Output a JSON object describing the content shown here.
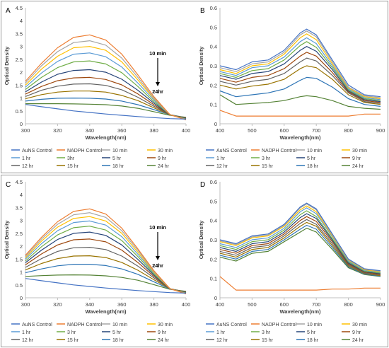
{
  "chart_data": [
    {
      "type": "line",
      "panel_label": "A",
      "xlabel": "Wavelength(nm)",
      "ylabel": "Optical Density",
      "xlim": [
        300,
        400
      ],
      "ylim": [
        0,
        4.5
      ],
      "xticks": [
        300,
        320,
        340,
        360,
        380,
        400
      ],
      "yticks": [
        0,
        0.5,
        1,
        1.5,
        2,
        2.5,
        3,
        3.5,
        4,
        4.5
      ],
      "annotation": {
        "top": "10 min",
        "bottom": "24hr"
      },
      "legend_position": "bottom",
      "x": [
        300,
        310,
        320,
        330,
        340,
        350,
        360,
        370,
        380,
        390,
        400
      ],
      "series": [
        {
          "name": "AuNS Control",
          "color": "#4472c4",
          "values": [
            0.75,
            0.66,
            0.58,
            0.5,
            0.44,
            0.38,
            0.33,
            0.28,
            0.24,
            0.2,
            0.18
          ]
        },
        {
          "name": "NADPH Control",
          "color": "#ed7d31",
          "values": [
            1.65,
            2.35,
            2.95,
            3.35,
            3.45,
            3.25,
            2.7,
            1.9,
            1.05,
            0.35,
            0.15
          ]
        },
        {
          "name": "10 min",
          "color": "#a5a5a5",
          "values": [
            1.58,
            2.25,
            2.8,
            3.15,
            3.22,
            3.05,
            2.55,
            1.8,
            1.0,
            0.35,
            0.16
          ]
        },
        {
          "name": "30 min",
          "color": "#ffc000",
          "values": [
            1.5,
            2.12,
            2.62,
            2.95,
            3.0,
            2.85,
            2.4,
            1.7,
            0.97,
            0.35,
            0.17
          ]
        },
        {
          "name": "1 hr",
          "color": "#5b9bd5",
          "values": [
            1.42,
            1.97,
            2.42,
            2.7,
            2.75,
            2.6,
            2.2,
            1.58,
            0.92,
            0.35,
            0.18
          ]
        },
        {
          "name": "3hr",
          "color": "#70ad47",
          "values": [
            1.33,
            1.8,
            2.18,
            2.4,
            2.44,
            2.32,
            1.98,
            1.45,
            0.86,
            0.35,
            0.19
          ]
        },
        {
          "name": "5 hr",
          "color": "#264478",
          "values": [
            1.24,
            1.62,
            1.92,
            2.07,
            2.1,
            2.0,
            1.73,
            1.3,
            0.8,
            0.35,
            0.2
          ]
        },
        {
          "name": "9 hr",
          "color": "#9e480e",
          "values": [
            1.15,
            1.45,
            1.67,
            1.78,
            1.8,
            1.72,
            1.51,
            1.16,
            0.74,
            0.35,
            0.21
          ]
        },
        {
          "name": "12 hr",
          "color": "#636363",
          "values": [
            1.06,
            1.3,
            1.46,
            1.54,
            1.55,
            1.49,
            1.32,
            1.03,
            0.68,
            0.35,
            0.22
          ]
        },
        {
          "name": "15 hr",
          "color": "#997300",
          "values": [
            0.97,
            1.13,
            1.23,
            1.27,
            1.27,
            1.23,
            1.1,
            0.9,
            0.62,
            0.35,
            0.23
          ]
        },
        {
          "name": "18 hr",
          "color": "#2e75b6",
          "values": [
            0.88,
            0.95,
            0.99,
            1.0,
            0.99,
            0.96,
            0.88,
            0.74,
            0.55,
            0.35,
            0.24
          ]
        },
        {
          "name": "24 hr",
          "color": "#548235",
          "values": [
            0.78,
            0.78,
            0.78,
            0.77,
            0.76,
            0.74,
            0.69,
            0.6,
            0.47,
            0.33,
            0.25
          ]
        }
      ]
    },
    {
      "type": "line",
      "panel_label": "B",
      "xlabel": "Wavelength(nm)",
      "ylabel": "Optical Density",
      "xlim": [
        400,
        900
      ],
      "ylim": [
        0,
        0.6
      ],
      "xticks": [
        400,
        500,
        600,
        700,
        800,
        900
      ],
      "yticks": [
        0,
        0.1,
        0.2,
        0.3,
        0.4,
        0.5,
        0.6
      ],
      "legend_position": "bottom",
      "x": [
        400,
        450,
        500,
        550,
        600,
        650,
        670,
        700,
        750,
        800,
        850,
        900
      ],
      "series": [
        {
          "name": "AuNS Control",
          "color": "#4472c4",
          "values": [
            0.3,
            0.28,
            0.32,
            0.33,
            0.38,
            0.47,
            0.49,
            0.46,
            0.33,
            0.2,
            0.15,
            0.14
          ]
        },
        {
          "name": "NADPH Control",
          "color": "#ed7d31",
          "values": [
            0.07,
            0.04,
            0.04,
            0.04,
            0.04,
            0.04,
            0.04,
            0.04,
            0.04,
            0.04,
            0.05,
            0.05
          ]
        },
        {
          "name": "10 min",
          "color": "#a5a5a5",
          "values": [
            0.29,
            0.27,
            0.31,
            0.32,
            0.37,
            0.46,
            0.48,
            0.45,
            0.32,
            0.19,
            0.145,
            0.135
          ]
        },
        {
          "name": "30 min",
          "color": "#ffc000",
          "values": [
            0.28,
            0.26,
            0.3,
            0.31,
            0.36,
            0.445,
            0.465,
            0.435,
            0.31,
            0.185,
            0.14,
            0.13
          ]
        },
        {
          "name": "1 hr",
          "color": "#5b9bd5",
          "values": [
            0.27,
            0.25,
            0.29,
            0.3,
            0.345,
            0.425,
            0.445,
            0.415,
            0.3,
            0.18,
            0.135,
            0.125
          ]
        },
        {
          "name": "3 hr",
          "color": "#70ad47",
          "values": [
            0.26,
            0.24,
            0.275,
            0.285,
            0.33,
            0.405,
            0.425,
            0.395,
            0.29,
            0.175,
            0.13,
            0.12
          ]
        },
        {
          "name": "5 hr",
          "color": "#264478",
          "values": [
            0.25,
            0.23,
            0.26,
            0.27,
            0.31,
            0.38,
            0.4,
            0.375,
            0.28,
            0.17,
            0.125,
            0.115
          ]
        },
        {
          "name": "9 hr",
          "color": "#9e480e",
          "values": [
            0.235,
            0.215,
            0.24,
            0.25,
            0.285,
            0.35,
            0.37,
            0.35,
            0.265,
            0.165,
            0.12,
            0.11
          ]
        },
        {
          "name": "12 hr",
          "color": "#636363",
          "values": [
            0.22,
            0.2,
            0.22,
            0.23,
            0.26,
            0.32,
            0.34,
            0.325,
            0.25,
            0.16,
            0.115,
            0.105
          ]
        },
        {
          "name": "15 hr",
          "color": "#997300",
          "values": [
            0.2,
            0.18,
            0.195,
            0.205,
            0.23,
            0.285,
            0.3,
            0.29,
            0.23,
            0.15,
            0.11,
            0.1
          ]
        },
        {
          "name": "18 hr",
          "color": "#2e75b6",
          "values": [
            0.17,
            0.14,
            0.15,
            0.16,
            0.18,
            0.225,
            0.24,
            0.235,
            0.19,
            0.13,
            0.1,
            0.09
          ]
        },
        {
          "name": "24 hr",
          "color": "#548235",
          "values": [
            0.15,
            0.1,
            0.105,
            0.11,
            0.12,
            0.14,
            0.145,
            0.14,
            0.12,
            0.09,
            0.08,
            0.075
          ]
        }
      ]
    },
    {
      "type": "line",
      "panel_label": "C",
      "xlabel": "Wavelength(nm)",
      "ylabel": "Optical Density",
      "xlim": [
        300,
        400
      ],
      "ylim": [
        0,
        4.5
      ],
      "xticks": [
        300,
        320,
        340,
        360,
        380,
        400
      ],
      "yticks": [
        0,
        0.5,
        1,
        1.5,
        2,
        2.5,
        3,
        3.5,
        4,
        4.5
      ],
      "annotation": {
        "top": "10 min",
        "bottom": "24hr"
      },
      "legend_position": "bottom",
      "x": [
        300,
        310,
        320,
        330,
        340,
        350,
        360,
        370,
        380,
        390,
        400
      ],
      "series": [
        {
          "name": "AuNS Control",
          "color": "#4472c4",
          "values": [
            0.75,
            0.66,
            0.58,
            0.5,
            0.44,
            0.38,
            0.33,
            0.28,
            0.24,
            0.2,
            0.18
          ]
        },
        {
          "name": "NADPH Control",
          "color": "#ed7d31",
          "values": [
            1.65,
            2.35,
            2.95,
            3.35,
            3.45,
            3.25,
            2.7,
            1.9,
            1.05,
            0.35,
            0.15
          ]
        },
        {
          "name": "10 min",
          "color": "#a5a5a5",
          "values": [
            1.6,
            2.28,
            2.85,
            3.22,
            3.3,
            3.12,
            2.6,
            1.84,
            1.02,
            0.35,
            0.16
          ]
        },
        {
          "name": "30 min",
          "color": "#ffc000",
          "values": [
            1.55,
            2.2,
            2.74,
            3.08,
            3.15,
            2.98,
            2.5,
            1.77,
            0.99,
            0.35,
            0.17
          ]
        },
        {
          "name": "1 hr",
          "color": "#5b9bd5",
          "values": [
            1.5,
            2.1,
            2.6,
            2.92,
            2.98,
            2.82,
            2.37,
            1.69,
            0.96,
            0.35,
            0.18
          ]
        },
        {
          "name": "3 hr",
          "color": "#70ad47",
          "values": [
            1.43,
            1.98,
            2.44,
            2.72,
            2.78,
            2.63,
            2.22,
            1.6,
            0.92,
            0.35,
            0.19
          ]
        },
        {
          "name": "5 hr",
          "color": "#264478",
          "values": [
            1.36,
            1.85,
            2.26,
            2.5,
            2.55,
            2.42,
            2.05,
            1.49,
            0.88,
            0.35,
            0.2
          ]
        },
        {
          "name": "9 hr",
          "color": "#9e480e",
          "values": [
            1.28,
            1.7,
            2.05,
            2.25,
            2.28,
            2.17,
            1.85,
            1.37,
            0.83,
            0.35,
            0.21
          ]
        },
        {
          "name": "12 hr",
          "color": "#636363",
          "values": [
            1.18,
            1.52,
            1.8,
            1.94,
            1.96,
            1.87,
            1.62,
            1.23,
            0.77,
            0.35,
            0.22
          ]
        },
        {
          "name": "15 hr",
          "color": "#997300",
          "values": [
            1.08,
            1.33,
            1.52,
            1.62,
            1.63,
            1.56,
            1.37,
            1.07,
            0.7,
            0.35,
            0.23
          ]
        },
        {
          "name": "18 hr",
          "color": "#2e75b6",
          "values": [
            0.97,
            1.12,
            1.24,
            1.3,
            1.3,
            1.25,
            1.12,
            0.91,
            0.62,
            0.34,
            0.24
          ]
        },
        {
          "name": "24 hr",
          "color": "#548235",
          "values": [
            0.83,
            0.86,
            0.88,
            0.89,
            0.88,
            0.85,
            0.79,
            0.68,
            0.51,
            0.33,
            0.25
          ]
        }
      ]
    },
    {
      "type": "line",
      "panel_label": "D",
      "xlabel": "Wavelength(nm)",
      "ylabel": "Optical Density",
      "xlim": [
        400,
        900
      ],
      "ylim": [
        0,
        0.6
      ],
      "xticks": [
        400,
        500,
        600,
        700,
        800,
        900
      ],
      "yticks": [
        0,
        0.1,
        0.2,
        0.3,
        0.4,
        0.5,
        0.6
      ],
      "legend_position": "bottom",
      "x": [
        400,
        450,
        500,
        550,
        600,
        650,
        670,
        700,
        750,
        800,
        850,
        900
      ],
      "series": [
        {
          "name": "AuNS Control",
          "color": "#4472c4",
          "values": [
            0.3,
            0.28,
            0.32,
            0.33,
            0.38,
            0.47,
            0.49,
            0.46,
            0.33,
            0.2,
            0.15,
            0.14
          ]
        },
        {
          "name": "NADPH Control",
          "color": "#ed7d31",
          "values": [
            0.11,
            0.04,
            0.04,
            0.04,
            0.04,
            0.04,
            0.04,
            0.04,
            0.045,
            0.045,
            0.05,
            0.05
          ]
        },
        {
          "name": "10 min",
          "color": "#a5a5a5",
          "values": [
            0.295,
            0.275,
            0.315,
            0.325,
            0.375,
            0.465,
            0.485,
            0.455,
            0.325,
            0.198,
            0.148,
            0.138
          ]
        },
        {
          "name": "30 min",
          "color": "#ffc000",
          "values": [
            0.29,
            0.27,
            0.31,
            0.32,
            0.37,
            0.455,
            0.475,
            0.445,
            0.32,
            0.195,
            0.145,
            0.135
          ]
        },
        {
          "name": "1 hr",
          "color": "#5b9bd5",
          "values": [
            0.28,
            0.26,
            0.3,
            0.31,
            0.36,
            0.445,
            0.465,
            0.435,
            0.315,
            0.19,
            0.142,
            0.132
          ]
        },
        {
          "name": "3 hr",
          "color": "#70ad47",
          "values": [
            0.27,
            0.25,
            0.29,
            0.3,
            0.35,
            0.43,
            0.45,
            0.42,
            0.305,
            0.185,
            0.138,
            0.128
          ]
        },
        {
          "name": "5 hr",
          "color": "#264478",
          "values": [
            0.26,
            0.24,
            0.28,
            0.29,
            0.34,
            0.415,
            0.435,
            0.41,
            0.298,
            0.18,
            0.135,
            0.125
          ]
        },
        {
          "name": "9 hr",
          "color": "#9e480e",
          "values": [
            0.25,
            0.23,
            0.27,
            0.28,
            0.33,
            0.4,
            0.42,
            0.395,
            0.29,
            0.175,
            0.132,
            0.122
          ]
        },
        {
          "name": "12 hr",
          "color": "#636363",
          "values": [
            0.24,
            0.22,
            0.26,
            0.27,
            0.32,
            0.385,
            0.405,
            0.38,
            0.28,
            0.17,
            0.128,
            0.118
          ]
        },
        {
          "name": "15 hr",
          "color": "#997300",
          "values": [
            0.23,
            0.21,
            0.25,
            0.26,
            0.31,
            0.37,
            0.39,
            0.37,
            0.27,
            0.165,
            0.125,
            0.115
          ]
        },
        {
          "name": "18 hr",
          "color": "#2e75b6",
          "values": [
            0.22,
            0.2,
            0.24,
            0.25,
            0.3,
            0.355,
            0.375,
            0.355,
            0.26,
            0.16,
            0.122,
            0.112
          ]
        },
        {
          "name": "24 hr",
          "color": "#548235",
          "values": [
            0.21,
            0.19,
            0.23,
            0.24,
            0.29,
            0.34,
            0.36,
            0.34,
            0.25,
            0.155,
            0.12,
            0.11
          ]
        }
      ]
    }
  ]
}
